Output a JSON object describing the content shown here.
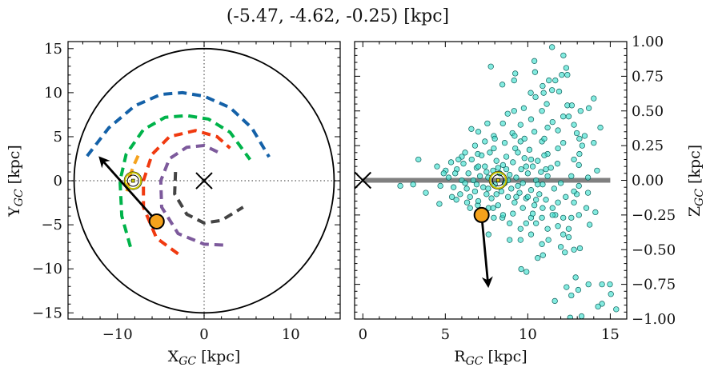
{
  "title": "(-5.47, -4.62, -0.25) [kpc]",
  "chart_data": [
    {
      "type": "line",
      "panel": "left",
      "xlabel": {
        "main": "X",
        "sub": "GC",
        "unit": " [kpc]"
      },
      "ylabel": {
        "main": "Y",
        "sub": "GC",
        "unit": " [kpc]"
      },
      "xlim": [
        -15.7,
        15.7
      ],
      "ylim": [
        -15.7,
        15.8
      ],
      "xticks": [
        -10,
        0,
        10
      ],
      "xtick_labels": [
        "−10",
        "0",
        "10"
      ],
      "yticks": [
        15,
        10,
        5,
        0,
        -5,
        -10,
        -15
      ],
      "ytick_labels": [
        "15",
        "10",
        "5",
        "0",
        "−5",
        "−10",
        "−15"
      ],
      "boundary_circle_radius": 15,
      "crosshair_dotted": true,
      "arms": [
        {
          "color": "#1461a8",
          "points": [
            [
              -13.5,
              2.8
            ],
            [
              -11,
              6
            ],
            [
              -8,
              8.5
            ],
            [
              -5,
              9.8
            ],
            [
              -2.5,
              10
            ],
            [
              0,
              9.6
            ],
            [
              3,
              8.3
            ],
            [
              5.5,
              6
            ],
            [
              7.5,
              2.7
            ]
          ]
        },
        {
          "color": "#00b34a",
          "points": [
            [
              -8.5,
              -7.5
            ],
            [
              -9.5,
              -4
            ],
            [
              -9.7,
              0
            ],
            [
              -9,
              3
            ],
            [
              -7,
              5.8
            ],
            [
              -4.5,
              7.2
            ],
            [
              -2,
              7.4
            ],
            [
              0.5,
              7
            ],
            [
              3,
              5.5
            ],
            [
              5.3,
              2.4
            ]
          ]
        },
        {
          "color": "#f5a21c",
          "points": [
            [
              -8.9,
              -1.2
            ],
            [
              -8.6,
              0.5
            ],
            [
              -8,
              2
            ],
            [
              -7.4,
              3.3
            ]
          ]
        },
        {
          "color": "#f03a10",
          "points": [
            [
              -3,
              -8.3
            ],
            [
              -5.5,
              -6.5
            ],
            [
              -7,
              -3
            ],
            [
              -7,
              0
            ],
            [
              -6,
              3
            ],
            [
              -4,
              5
            ],
            [
              -1,
              5.7
            ],
            [
              1.5,
              5
            ],
            [
              3,
              3.7
            ]
          ]
        },
        {
          "color": "#7d5a9c",
          "points": [
            [
              2.2,
              -7.3
            ],
            [
              0,
              -7.2
            ],
            [
              -3,
              -6
            ],
            [
              -4.9,
              -3
            ],
            [
              -5,
              0
            ],
            [
              -4,
              2.5
            ],
            [
              -2,
              3.8
            ],
            [
              0,
              4
            ],
            [
              1.7,
              3.2
            ]
          ]
        },
        {
          "color": "#444444",
          "points": [
            [
              -3.3,
              1
            ],
            [
              -3.4,
              -1.5
            ],
            [
              -2,
              -3.8
            ],
            [
              0,
              -4.8
            ],
            [
              2,
              -4.5
            ],
            [
              4.5,
              -3
            ]
          ]
        }
      ],
      "galactic_center": [
        0,
        0
      ],
      "sun": [
        -8.2,
        0
      ],
      "object": [
        -5.47,
        -4.62
      ],
      "velocity_arrow_tip": [
        -12.0,
        2.6
      ],
      "object_color": "#f5a21c",
      "sun_color": "#c8c400"
    },
    {
      "type": "scatter",
      "panel": "right",
      "xlabel": {
        "main": "R",
        "sub": "GC",
        "unit": " [kpc]"
      },
      "ylabel": {
        "main": "Z",
        "sub": "GC",
        "unit": " [kpc]"
      },
      "xlim": [
        -0.5,
        16
      ],
      "ylim": [
        -1.0,
        1.0
      ],
      "xticks": [
        0,
        5,
        10,
        15
      ],
      "xtick_labels": [
        "0",
        "5",
        "10",
        "15"
      ],
      "yticks": [
        1.0,
        0.75,
        0.5,
        0.25,
        0.0,
        -0.25,
        -0.5,
        -0.75,
        -1.0
      ],
      "ytick_labels": [
        "1.00",
        "0.75",
        "0.50",
        "0.25",
        "0.00",
        "−0.25",
        "−0.50",
        "−0.75",
        "−1.00"
      ],
      "disk_line": {
        "from": 0,
        "to": 15,
        "z": 0,
        "color": "#808080"
      },
      "galactic_center": [
        0,
        0
      ],
      "sun": [
        8.2,
        0
      ],
      "object": [
        7.2,
        -0.25
      ],
      "velocity_arrow_tip": [
        7.6,
        -0.76
      ],
      "point_color": "#40e0d0",
      "points": [
        [
          11.47,
          0.96
        ],
        [
          12.16,
          0.9
        ],
        [
          10.4,
          0.86
        ],
        [
          7.76,
          0.82
        ],
        [
          12.33,
          0.81
        ],
        [
          10.44,
          0.78
        ],
        [
          9.24,
          0.77
        ],
        [
          12.06,
          0.76
        ],
        [
          12.4,
          0.76
        ],
        [
          9.17,
          0.72
        ],
        [
          8.46,
          0.69
        ],
        [
          11.28,
          0.72
        ],
        [
          11.67,
          0.72
        ],
        [
          10.9,
          0.68
        ],
        [
          10.96,
          0.63
        ],
        [
          10.18,
          0.63
        ],
        [
          10.47,
          0.6
        ],
        [
          11.9,
          0.64
        ],
        [
          11.47,
          0.65
        ],
        [
          14.0,
          0.59
        ],
        [
          11.15,
          0.55
        ],
        [
          12.4,
          0.54
        ],
        [
          12.67,
          0.54
        ],
        [
          13.7,
          0.52
        ],
        [
          13.2,
          0.5
        ],
        [
          9.76,
          0.52
        ],
        [
          9.17,
          0.5
        ],
        [
          8.78,
          0.48
        ],
        [
          10.86,
          0.5
        ],
        [
          14.4,
          0.38
        ],
        [
          6.58,
          0.37
        ],
        [
          7.0,
          0.35
        ],
        [
          7.55,
          0.41
        ],
        [
          8.49,
          0.41
        ],
        [
          3.37,
          0.15
        ],
        [
          2.27,
          -0.04
        ],
        [
          3.05,
          -0.03
        ],
        [
          3.82,
          -0.09
        ],
        [
          4.64,
          -0.17
        ],
        [
          14.0,
          0.27
        ],
        [
          14.2,
          0.07
        ],
        [
          13.65,
          0.02
        ],
        [
          13.65,
          -0.09
        ],
        [
          13.55,
          -0.2
        ],
        [
          14.1,
          -0.23
        ],
        [
          13.75,
          -0.32
        ],
        [
          7.62,
          -0.39
        ],
        [
          8.9,
          -0.43
        ],
        [
          9.6,
          -0.64
        ],
        [
          9.92,
          -0.66
        ],
        [
          10.6,
          -0.56
        ],
        [
          10.92,
          -0.54
        ],
        [
          10.86,
          -0.46
        ],
        [
          12.0,
          -0.48
        ],
        [
          12.25,
          -0.52
        ],
        [
          12.8,
          -0.5
        ],
        [
          13.16,
          -0.49
        ],
        [
          12.9,
          -0.7
        ],
        [
          12.35,
          -0.77
        ],
        [
          13.06,
          -0.79
        ],
        [
          12.64,
          -0.83
        ],
        [
          13.68,
          -0.75
        ],
        [
          14.5,
          -0.75
        ],
        [
          14.98,
          -0.75
        ],
        [
          15.04,
          -0.82
        ],
        [
          11.64,
          -0.87
        ],
        [
          14.5,
          -0.89
        ],
        [
          14.26,
          -0.91
        ],
        [
          15.36,
          -0.93
        ],
        [
          12.57,
          -0.99
        ],
        [
          13.26,
          -0.98
        ],
        [
          9.56,
          -0.43
        ],
        [
          10.2,
          -0.39
        ],
        [
          11.25,
          -0.43
        ],
        [
          12.48,
          -0.41
        ],
        [
          12.48,
          -0.35
        ],
        [
          12.64,
          -0.27
        ],
        [
          13.1,
          -0.25
        ],
        [
          12.15,
          -0.27
        ],
        [
          11.67,
          -0.25
        ],
        [
          12.8,
          -0.16
        ],
        [
          12.97,
          -0.1
        ],
        [
          13.13,
          0.19
        ],
        [
          13.3,
          0.25
        ],
        [
          13.13,
          0.3
        ],
        [
          13.45,
          0.32
        ],
        [
          12.97,
          0.34
        ],
        [
          12.8,
          0.4
        ],
        [
          12.48,
          0.46
        ],
        [
          12.15,
          0.46
        ],
        [
          11.83,
          0.36
        ],
        [
          11.5,
          0.42
        ],
        [
          11.2,
          0.38
        ],
        [
          10.2,
          0.44
        ],
        [
          9.56,
          0.4
        ],
        [
          9.07,
          0.34
        ],
        [
          7.94,
          0.32
        ],
        [
          9.56,
          0.28
        ],
        [
          10.86,
          0.28
        ],
        [
          12.15,
          0.27
        ],
        [
          12.8,
          0.15
        ],
        [
          13.1,
          0.11
        ],
        [
          12.64,
          0.03
        ],
        [
          13.1,
          -0.04
        ],
        [
          12.8,
          -0.08
        ],
        [
          12.3,
          -0.12
        ],
        [
          11.83,
          -0.16
        ],
        [
          11.5,
          -0.2
        ],
        [
          10.86,
          -0.27
        ],
        [
          10.5,
          -0.31
        ],
        [
          10.2,
          -0.27
        ],
        [
          9.9,
          -0.31
        ],
        [
          9.56,
          -0.35
        ],
        [
          8.9,
          -0.31
        ],
        [
          8.46,
          -0.27
        ],
        [
          7.94,
          -0.27
        ],
        [
          11.2,
          -0.35
        ],
        [
          11.83,
          -0.33
        ],
        [
          12.15,
          -0.39
        ],
        [
          10.2,
          0.15
        ],
        [
          11.2,
          0.19
        ],
        [
          11.83,
          0.23
        ],
        [
          9.24,
          0.23
        ],
        [
          7.94,
          0.23
        ],
        [
          6.97,
          0.19
        ],
        [
          6.0,
          0.17
        ],
        [
          5.35,
          0.13
        ],
        [
          5.02,
          0.07
        ],
        [
          5.67,
          -0.14
        ],
        [
          6.32,
          -0.16
        ],
        [
          6.97,
          -0.18
        ],
        [
          7.62,
          -0.2
        ],
        [
          5.2,
          0.02
        ],
        [
          5.5,
          -0.05
        ],
        [
          5.7,
          0.08
        ],
        [
          5.9,
          -0.1
        ],
        [
          6.0,
          0.0
        ],
        [
          6.1,
          0.12
        ],
        [
          6.3,
          -0.06
        ],
        [
          6.4,
          0.05
        ],
        [
          6.5,
          -0.12
        ],
        [
          6.6,
          0.15
        ],
        [
          6.7,
          0.0
        ],
        [
          6.8,
          -0.08
        ],
        [
          6.9,
          0.09
        ],
        [
          7.0,
          -0.15
        ],
        [
          7.1,
          0.03
        ],
        [
          7.2,
          0.18
        ],
        [
          7.3,
          -0.05
        ],
        [
          7.4,
          0.1
        ],
        [
          7.5,
          -0.1
        ],
        [
          7.6,
          0.02
        ],
        [
          7.7,
          0.2
        ],
        [
          7.8,
          -0.13
        ],
        [
          7.9,
          0.07
        ],
        [
          8.0,
          -0.03
        ],
        [
          8.1,
          0.14
        ],
        [
          8.2,
          -0.18
        ],
        [
          8.3,
          0.05
        ],
        [
          8.4,
          -0.08
        ],
        [
          8.5,
          0.11
        ],
        [
          8.6,
          -0.02
        ],
        [
          8.7,
          0.17
        ],
        [
          8.8,
          -0.12
        ],
        [
          8.9,
          0.04
        ],
        [
          9.0,
          -0.06
        ],
        [
          9.1,
          0.13
        ],
        [
          9.2,
          -0.16
        ],
        [
          9.3,
          0.02
        ],
        [
          9.4,
          0.2
        ],
        [
          9.5,
          -0.09
        ],
        [
          9.6,
          0.08
        ],
        [
          9.7,
          -0.02
        ],
        [
          9.8,
          0.16
        ],
        [
          9.9,
          -0.13
        ],
        [
          10.0,
          0.05
        ],
        [
          10.1,
          0.22
        ],
        [
          10.2,
          -0.07
        ],
        [
          10.3,
          0.1
        ],
        [
          10.4,
          -0.18
        ],
        [
          10.5,
          0.0
        ],
        [
          10.6,
          0.14
        ],
        [
          10.7,
          -0.1
        ],
        [
          10.8,
          0.06
        ],
        [
          10.9,
          -0.03
        ],
        [
          11.0,
          0.18
        ],
        [
          11.1,
          -0.14
        ],
        [
          11.2,
          0.03
        ],
        [
          11.4,
          0.09
        ],
        [
          11.6,
          -0.06
        ],
        [
          11.8,
          0.12
        ],
        [
          12.0,
          -0.02
        ],
        [
          6.2,
          0.2
        ],
        [
          6.8,
          0.25
        ],
        [
          7.4,
          0.28
        ],
        [
          8.0,
          0.3
        ],
        [
          8.6,
          0.27
        ],
        [
          9.2,
          0.32
        ],
        [
          9.8,
          0.3
        ],
        [
          10.4,
          0.35
        ],
        [
          11.0,
          0.3
        ],
        [
          6.5,
          -0.2
        ],
        [
          7.2,
          -0.22
        ],
        [
          7.9,
          -0.2
        ],
        [
          8.5,
          -0.25
        ],
        [
          9.1,
          -0.24
        ],
        [
          9.7,
          -0.2
        ],
        [
          10.3,
          -0.24
        ],
        [
          10.9,
          -0.2
        ],
        [
          11.5,
          -0.25
        ],
        [
          5.8,
          0.15
        ],
        [
          5.4,
          -0.12
        ],
        [
          4.9,
          0.05
        ],
        [
          4.7,
          -0.04
        ],
        [
          4.5,
          0.1
        ],
        [
          7.0,
          0.1
        ],
        [
          7.6,
          -0.06
        ],
        [
          8.2,
          0.09
        ],
        [
          8.8,
          0.0
        ],
        [
          9.4,
          -0.04
        ],
        [
          10.0,
          -0.12
        ],
        [
          10.6,
          -0.03
        ],
        [
          5.6,
          0.05
        ],
        [
          6.2,
          -0.02
        ],
        [
          6.9,
          -0.03
        ],
        [
          7.5,
          0.06
        ],
        [
          8.1,
          -0.1
        ],
        [
          8.7,
          0.08
        ],
        [
          9.3,
          -0.12
        ],
        [
          9.9,
          0.1
        ],
        [
          10.5,
          -0.14
        ],
        [
          11.1,
          0.08
        ]
      ]
    }
  ]
}
